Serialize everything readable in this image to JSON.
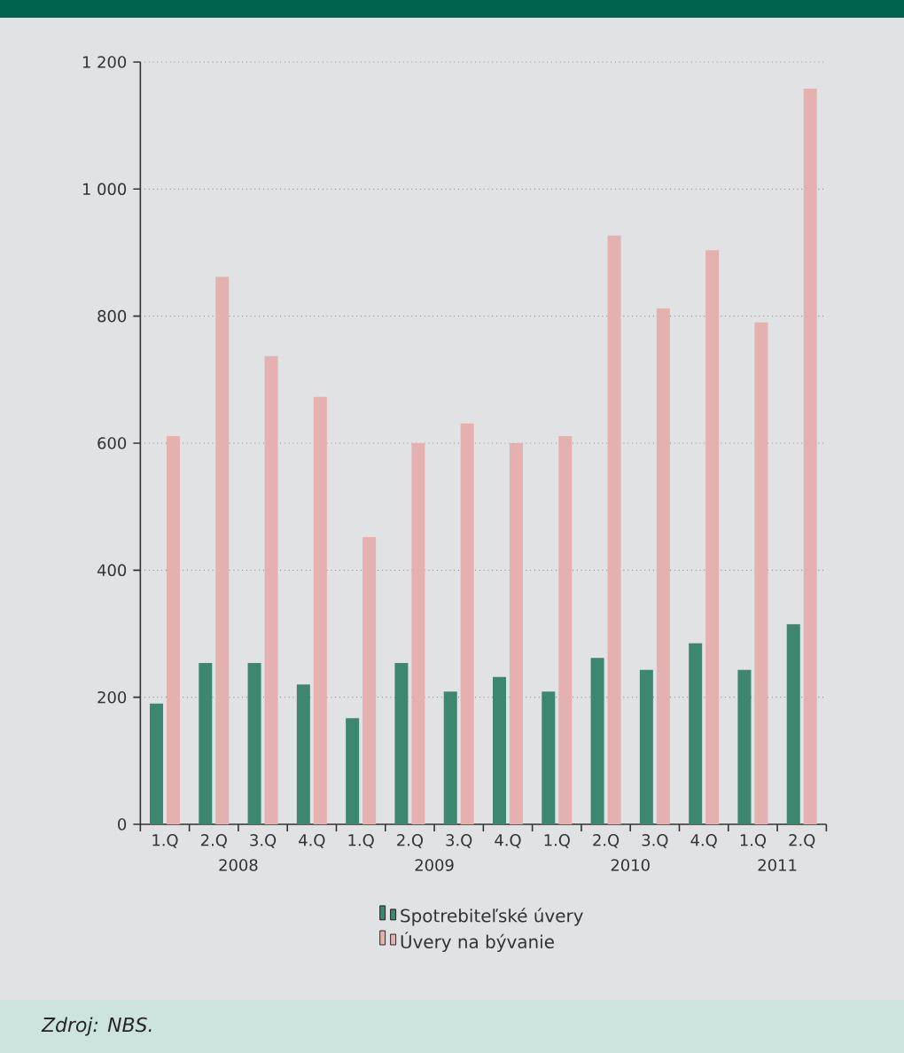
{
  "chart_data": {
    "type": "bar",
    "categories": [
      "1.Q",
      "2.Q",
      "3.Q",
      "4.Q",
      "1.Q",
      "2.Q",
      "3.Q",
      "4.Q",
      "1.Q",
      "2.Q",
      "3.Q",
      "4.Q",
      "1.Q",
      "2.Q"
    ],
    "series": [
      {
        "name": "Spotrebiteľské úvery",
        "color": "#3d8670",
        "values": [
          190,
          254,
          254,
          220,
          167,
          254,
          209,
          232,
          209,
          262,
          243,
          285,
          243,
          315
        ]
      },
      {
        "name": "Úvery na bývanie",
        "color": "#e4b0b0",
        "values": [
          611,
          862,
          737,
          673,
          452,
          600,
          631,
          600,
          611,
          927,
          812,
          904,
          790,
          1158
        ]
      }
    ],
    "ylim": [
      0,
      1200
    ],
    "yticks": [
      0,
      200,
      400,
      600,
      800,
      {
        "value": 1000,
        "label": "1 000"
      },
      {
        "value": 1200,
        "label": "1 200"
      }
    ],
    "grid": "y",
    "legend": "bottom",
    "annotations": [
      "2008",
      "2009",
      "2010",
      "2011",
      "Zdroj: NBS."
    ]
  }
}
